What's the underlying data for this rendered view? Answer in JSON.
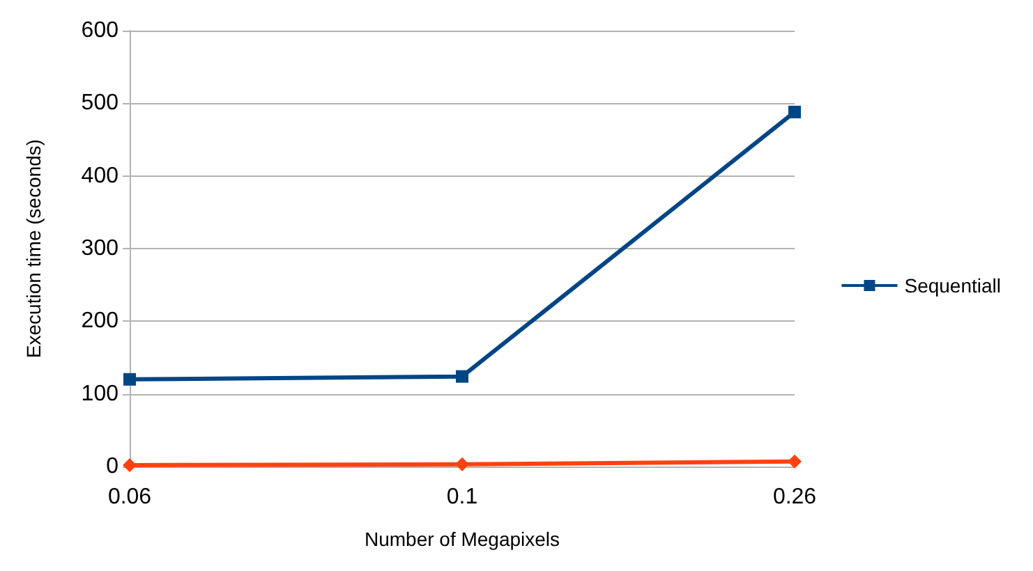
{
  "chart_data": {
    "type": "line",
    "xlabel": "Number of Megapixels",
    "ylabel": "Execution time (seconds)",
    "categories": [
      "0.06",
      "0.1",
      "0.26"
    ],
    "series": [
      {
        "name": "Sequentiall",
        "color": "#004586",
        "marker": "square",
        "values": [
          120,
          124,
          488
        ]
      },
      {
        "color": "#ff420e",
        "marker": "diamond",
        "values": [
          2,
          3,
          7
        ]
      }
    ],
    "ylim": [
      0,
      600
    ],
    "yticks": [
      0,
      100,
      200,
      300,
      400,
      500,
      600
    ],
    "grid": "y",
    "legend": "right"
  }
}
